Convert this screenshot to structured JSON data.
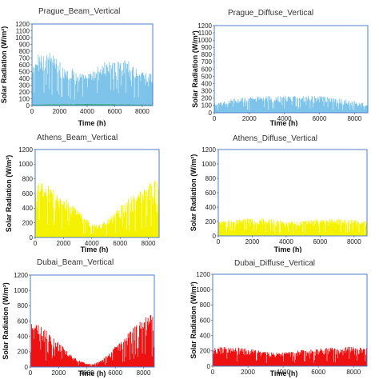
{
  "chart_data": [
    {
      "type": "area",
      "title": "Prague_Beam_Vertical",
      "xlabel": "Time (h)",
      "ylabel": "Solar Radiation (W/m²)",
      "xlim": [
        0,
        8760
      ],
      "ylim": [
        0,
        1200
      ],
      "xticks": [
        0,
        2000,
        4000,
        6000,
        8000
      ],
      "yticks": [
        0,
        100,
        200,
        300,
        400,
        500,
        600,
        700,
        800,
        900,
        1000,
        1100,
        1200
      ],
      "grid": false,
      "colors": [
        "#7ec4ea",
        "#2ca860"
      ],
      "series": [
        {
          "x": [
            0,
            500,
            1000,
            1500,
            2000,
            2500,
            3000,
            3500,
            4000,
            4500,
            5000,
            5500,
            6000,
            6500,
            7000,
            7500,
            8000,
            8500,
            8760
          ],
          "values": [
            550,
            780,
            800,
            760,
            650,
            600,
            540,
            480,
            460,
            520,
            620,
            650,
            640,
            650,
            700,
            580,
            520,
            470,
            500
          ]
        },
        {
          "x": [
            0,
            2000,
            4000,
            6000,
            8760
          ],
          "values": [
            15,
            20,
            25,
            20,
            15
          ]
        }
      ]
    },
    {
      "type": "area",
      "title": "Prague_Diffuse_Vertical",
      "xlabel": "Time (h)",
      "ylabel": "Solar Radiation (W/m²)",
      "xlim": [
        0,
        8760
      ],
      "ylim": [
        0,
        1200
      ],
      "xticks": [
        0,
        2000,
        4000,
        6000,
        8000
      ],
      "yticks": [
        0,
        100,
        200,
        300,
        400,
        500,
        600,
        700,
        800,
        900,
        1000,
        1100,
        1200
      ],
      "grid": false,
      "colors": [
        "#7ec4ea"
      ],
      "series": [
        {
          "x": [
            0,
            500,
            1000,
            1500,
            2000,
            2500,
            3000,
            3500,
            4000,
            4500,
            5000,
            5500,
            6000,
            6500,
            7000,
            7500,
            8000,
            8500,
            8760
          ],
          "values": [
            120,
            150,
            190,
            210,
            220,
            225,
            230,
            235,
            235,
            240,
            240,
            235,
            230,
            220,
            200,
            185,
            160,
            135,
            115
          ]
        }
      ]
    },
    {
      "type": "area",
      "title": "Athens_Beam_Vertical",
      "xlabel": "Time (h)",
      "ylabel": "Solar Radiation (W/m²)",
      "xlim": [
        0,
        8760
      ],
      "ylim": [
        0,
        1200
      ],
      "xticks": [
        0,
        2000,
        4000,
        6000,
        8000
      ],
      "yticks": [
        0,
        200,
        400,
        600,
        800,
        1000,
        1200
      ],
      "grid": false,
      "colors": [
        "#f5f200"
      ],
      "series": [
        {
          "x": [
            0,
            500,
            1000,
            1500,
            2000,
            2500,
            3000,
            3500,
            4000,
            4500,
            5000,
            5500,
            6000,
            6500,
            7000,
            7500,
            8000,
            8500,
            8760
          ],
          "values": [
            700,
            780,
            700,
            620,
            560,
            480,
            380,
            280,
            200,
            180,
            230,
            330,
            430,
            520,
            580,
            640,
            720,
            800,
            760
          ]
        }
      ]
    },
    {
      "type": "area",
      "title": "Athens_Diffuse_Vertical",
      "xlabel": "Time (h)",
      "ylabel": "Solar Radiation (W/m²)",
      "xlim": [
        0,
        8760
      ],
      "ylim": [
        0,
        1200
      ],
      "xticks": [
        0,
        2000,
        4000,
        6000,
        8000
      ],
      "yticks": [
        0,
        200,
        400,
        600,
        800,
        1000,
        1200
      ],
      "grid": false,
      "colors": [
        "#f5f200"
      ],
      "series": [
        {
          "x": [
            0,
            500,
            1000,
            1500,
            2000,
            2500,
            3000,
            3500,
            4000,
            4500,
            5000,
            5500,
            6000,
            6500,
            7000,
            7500,
            8000,
            8500,
            8760
          ],
          "values": [
            200,
            220,
            230,
            240,
            245,
            250,
            240,
            225,
            210,
            200,
            205,
            220,
            235,
            240,
            240,
            235,
            225,
            210,
            200
          ]
        }
      ]
    },
    {
      "type": "area",
      "title": "Dubai_Beam_Vertical",
      "xlabel": "Time (h)",
      "ylabel": "Solar Radiation (W/m²)",
      "xlim": [
        0,
        8760
      ],
      "ylim": [
        0,
        1200
      ],
      "xticks": [
        0,
        2000,
        4000,
        6000,
        8000
      ],
      "yticks": [
        0,
        200,
        400,
        600,
        800,
        1000,
        1200
      ],
      "grid": false,
      "colors": [
        "#ee1111"
      ],
      "series": [
        {
          "x": [
            0,
            500,
            1000,
            1500,
            2000,
            2500,
            3000,
            3500,
            4000,
            4500,
            5000,
            5500,
            6000,
            6500,
            7000,
            7500,
            8000,
            8500,
            8760
          ],
          "values": [
            700,
            560,
            500,
            420,
            330,
            230,
            140,
            80,
            45,
            50,
            90,
            170,
            270,
            380,
            470,
            560,
            640,
            690,
            620
          ]
        }
      ]
    },
    {
      "type": "area",
      "title": "Dubai_Diffuse_Vertical",
      "xlabel": "Time (h)",
      "ylabel": "Solar Radiation (W/m²)",
      "xlim": [
        0,
        8760
      ],
      "ylim": [
        0,
        1200
      ],
      "xticks": [
        0,
        2000,
        4000,
        6000,
        8000
      ],
      "yticks": [
        0,
        200,
        400,
        600,
        800,
        1000,
        1200
      ],
      "grid": false,
      "colors": [
        "#ee1111"
      ],
      "series": [
        {
          "x": [
            0,
            500,
            1000,
            1500,
            2000,
            2500,
            3000,
            3500,
            4000,
            4500,
            5000,
            5500,
            6000,
            6500,
            7000,
            7500,
            8000,
            8500,
            8760
          ],
          "values": [
            240,
            250,
            255,
            245,
            230,
            210,
            190,
            180,
            185,
            200,
            210,
            220,
            230,
            240,
            250,
            255,
            250,
            240,
            235
          ]
        }
      ]
    }
  ]
}
